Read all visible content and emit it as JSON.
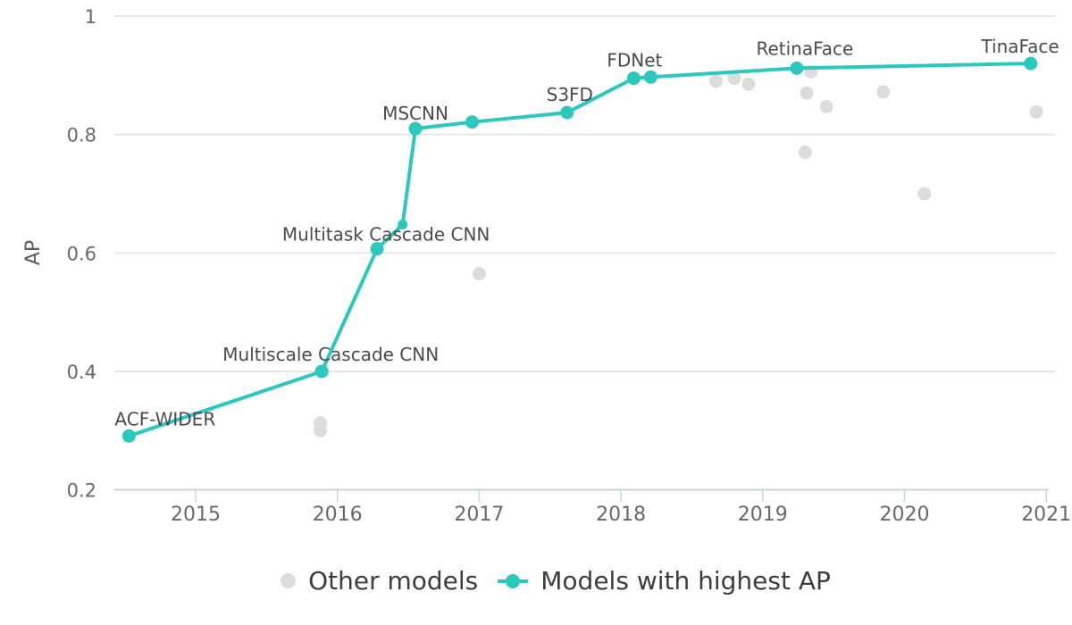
{
  "chart_data": {
    "type": "scatter",
    "title": "",
    "xlabel": "",
    "ylabel": "AP",
    "xlim": [
      2014.43,
      2021.02
    ],
    "ylim": [
      0.2,
      1.0
    ],
    "grid": true,
    "legend_position": "bottom",
    "x_ticks": [
      2015,
      2016,
      2017,
      2018,
      2019,
      2020,
      2021
    ],
    "x_tick_labels": [
      "2015",
      "2016",
      "2017",
      "2018",
      "2019",
      "2020",
      "2021"
    ],
    "y_ticks": [
      1,
      0.8,
      0.6,
      0.4,
      0.2
    ],
    "y_tick_labels": [
      "1",
      "0.8",
      "0.6",
      "0.4",
      "0.2"
    ],
    "colors": {
      "highlight": "#2bc8bd",
      "other": "#dcdcdc",
      "grid": "#e6e6e6",
      "axis": "#c8d4e3",
      "tick_text": "#696969",
      "label_text": "#4a4a4a",
      "axis_title_text": "#5a5a5a",
      "legend_text": "#3d3d3d"
    },
    "series": [
      {
        "name": "Other models",
        "type": "scatter",
        "color": "#dcdcdc",
        "points": [
          {
            "x": 2015.88,
            "y": 0.313
          },
          {
            "x": 2015.88,
            "y": 0.3
          },
          {
            "x": 2017.0,
            "y": 0.565
          },
          {
            "x": 2018.67,
            "y": 0.89
          },
          {
            "x": 2018.8,
            "y": 0.895
          },
          {
            "x": 2018.9,
            "y": 0.885
          },
          {
            "x": 2019.3,
            "y": 0.77
          },
          {
            "x": 2019.31,
            "y": 0.87
          },
          {
            "x": 2019.34,
            "y": 0.906
          },
          {
            "x": 2019.45,
            "y": 0.847
          },
          {
            "x": 2019.85,
            "y": 0.872
          },
          {
            "x": 2020.14,
            "y": 0.7
          },
          {
            "x": 2020.93,
            "y": 0.838
          }
        ]
      },
      {
        "name": "Models with highest AP",
        "type": "line+scatter",
        "color": "#2bc8bd",
        "points": [
          {
            "x": 2014.53,
            "y": 0.291,
            "label": "ACF-WIDER",
            "label_anchor": "start",
            "label_dx": -16
          },
          {
            "x": 2015.89,
            "y": 0.4,
            "label": "Multiscale Cascade CNN",
            "label_dx": 10
          },
          {
            "x": 2016.28,
            "y": 0.607,
            "label": "Multitask Cascade CNN",
            "label_dx": 10,
            "label_dy": -9
          },
          {
            "x": 2016.46,
            "y": 0.648,
            "small": true
          },
          {
            "x": 2016.55,
            "y": 0.81,
            "label": "MSCNN",
            "label_dy": -10
          },
          {
            "x": 2016.95,
            "y": 0.821
          },
          {
            "x": 2017.62,
            "y": 0.837,
            "label": "S3FD",
            "label_dx": 3,
            "label_dy": -13
          },
          {
            "x": 2018.09,
            "y": 0.895,
            "label": "FDNet",
            "label_dx": 1,
            "label_dy": -13
          },
          {
            "x": 2018.21,
            "y": 0.897
          },
          {
            "x": 2019.24,
            "y": 0.912,
            "label": "RetinaFace",
            "label_dx": 9,
            "label_dy": -15
          },
          {
            "x": 2020.89,
            "y": 0.92,
            "label": "TinaFace",
            "label_anchor": "end",
            "label_dx": 32
          }
        ]
      }
    ]
  }
}
